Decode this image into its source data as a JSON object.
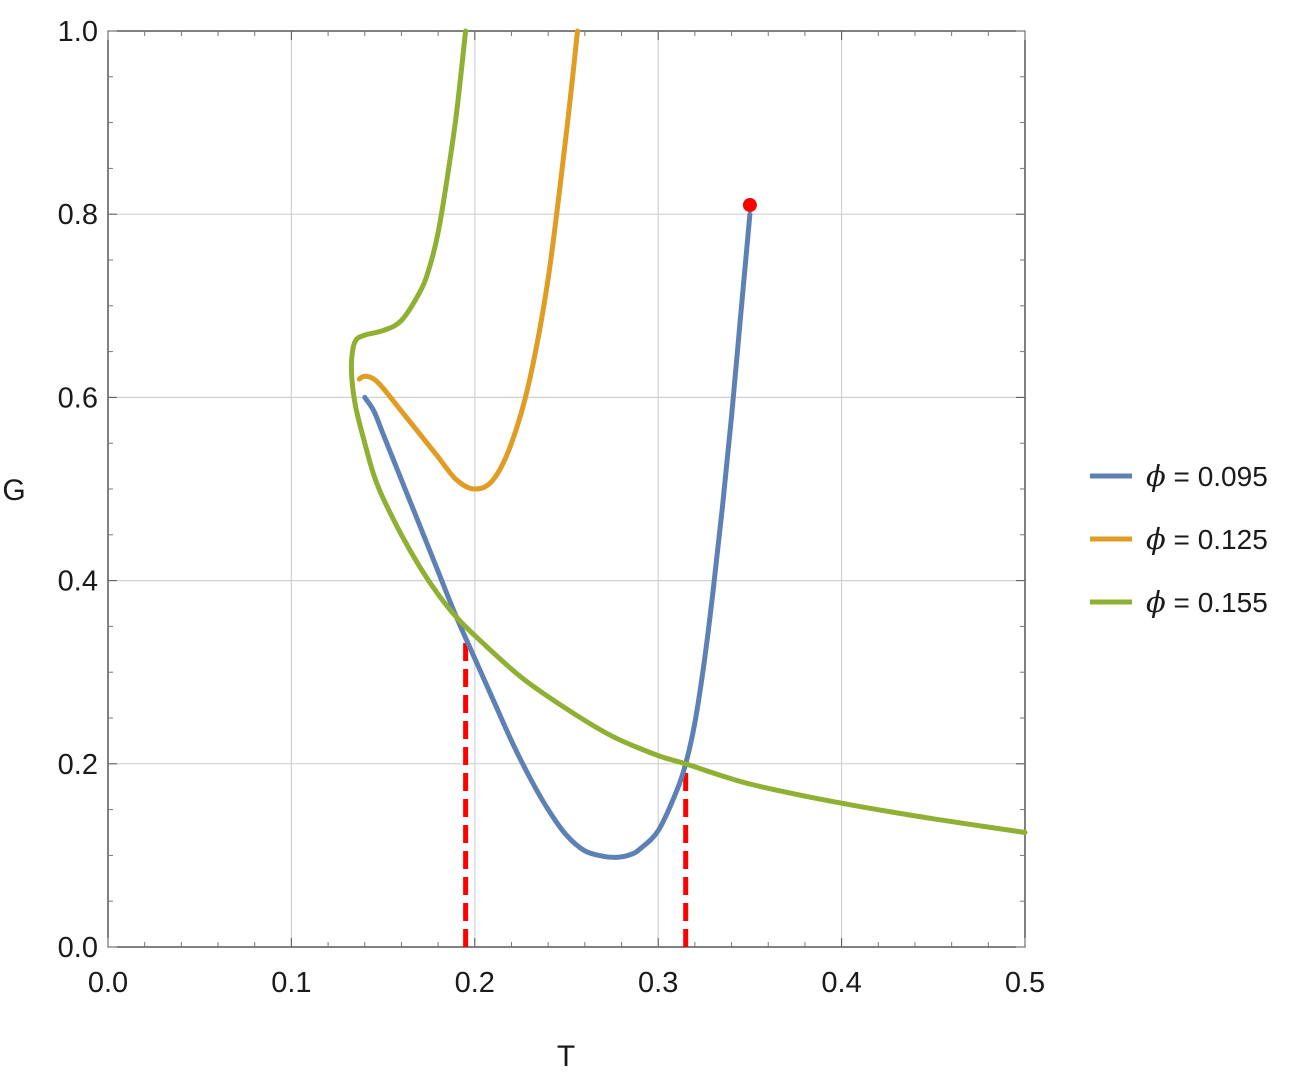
{
  "chart_data": {
    "type": "line",
    "title": "",
    "xlabel": "T",
    "ylabel": "G",
    "xlim": [
      0,
      0.5
    ],
    "ylim": [
      0,
      1.0
    ],
    "grid": true,
    "legend_position": "right",
    "x_ticks": [
      "0.0",
      "0.1",
      "0.2",
      "0.3",
      "0.4",
      "0.5"
    ],
    "y_ticks": [
      "0.0",
      "0.2",
      "0.4",
      "0.6",
      "0.8",
      "1.0"
    ],
    "series": [
      {
        "name": "ϕ = 0.095",
        "symbol": "ϕ",
        "value_label": " = 0.095",
        "color": "#5e81b5",
        "points": [
          [
            0.14,
            0.6
          ],
          [
            0.145,
            0.585
          ],
          [
            0.15,
            0.56
          ],
          [
            0.16,
            0.51
          ],
          [
            0.17,
            0.46
          ],
          [
            0.18,
            0.41
          ],
          [
            0.19,
            0.36
          ],
          [
            0.2,
            0.315
          ],
          [
            0.21,
            0.27
          ],
          [
            0.22,
            0.225
          ],
          [
            0.23,
            0.185
          ],
          [
            0.24,
            0.15
          ],
          [
            0.25,
            0.122
          ],
          [
            0.26,
            0.105
          ],
          [
            0.27,
            0.099
          ],
          [
            0.278,
            0.098
          ],
          [
            0.285,
            0.101
          ],
          [
            0.29,
            0.107
          ],
          [
            0.3,
            0.127
          ],
          [
            0.31,
            0.17
          ],
          [
            0.315,
            0.2
          ],
          [
            0.32,
            0.245
          ],
          [
            0.325,
            0.31
          ],
          [
            0.33,
            0.39
          ],
          [
            0.335,
            0.48
          ],
          [
            0.34,
            0.58
          ],
          [
            0.345,
            0.69
          ],
          [
            0.35,
            0.8
          ]
        ]
      },
      {
        "name": "ϕ = 0.125",
        "symbol": "ϕ",
        "value_label": " = 0.125",
        "color": "#e19c24",
        "points": [
          [
            0.137,
            0.62
          ],
          [
            0.14,
            0.623
          ],
          [
            0.145,
            0.62
          ],
          [
            0.15,
            0.61
          ],
          [
            0.16,
            0.585
          ],
          [
            0.17,
            0.56
          ],
          [
            0.18,
            0.535
          ],
          [
            0.19,
            0.51
          ],
          [
            0.2,
            0.5
          ],
          [
            0.21,
            0.51
          ],
          [
            0.22,
            0.55
          ],
          [
            0.23,
            0.62
          ],
          [
            0.24,
            0.73
          ],
          [
            0.25,
            0.89
          ],
          [
            0.256,
            1.0
          ]
        ]
      },
      {
        "name": "ϕ = 0.155",
        "symbol": "ϕ",
        "value_label": " = 0.155",
        "color": "#8fb032",
        "points": [
          [
            0.5,
            0.125
          ],
          [
            0.45,
            0.14
          ],
          [
            0.4,
            0.157
          ],
          [
            0.35,
            0.178
          ],
          [
            0.315,
            0.2
          ],
          [
            0.3,
            0.209
          ],
          [
            0.275,
            0.23
          ],
          [
            0.25,
            0.26
          ],
          [
            0.225,
            0.295
          ],
          [
            0.2,
            0.34
          ],
          [
            0.19,
            0.36
          ],
          [
            0.18,
            0.385
          ],
          [
            0.17,
            0.415
          ],
          [
            0.16,
            0.45
          ],
          [
            0.15,
            0.49
          ],
          [
            0.145,
            0.515
          ],
          [
            0.14,
            0.55
          ],
          [
            0.135,
            0.59
          ],
          [
            0.133,
            0.62
          ],
          [
            0.133,
            0.645
          ],
          [
            0.135,
            0.662
          ],
          [
            0.14,
            0.668
          ],
          [
            0.15,
            0.673
          ],
          [
            0.16,
            0.684
          ],
          [
            0.17,
            0.715
          ],
          [
            0.175,
            0.74
          ],
          [
            0.18,
            0.78
          ],
          [
            0.185,
            0.84
          ],
          [
            0.19,
            0.91
          ],
          [
            0.195,
            1.0
          ]
        ]
      }
    ],
    "critical_point": {
      "x": 0.35,
      "y": 0.81,
      "color": "#ff0000"
    },
    "dashed_markers": [
      {
        "x": 0.195,
        "y": 0.34,
        "color": "#ff0000"
      },
      {
        "x": 0.315,
        "y": 0.2,
        "color": "#ff0000"
      }
    ]
  }
}
